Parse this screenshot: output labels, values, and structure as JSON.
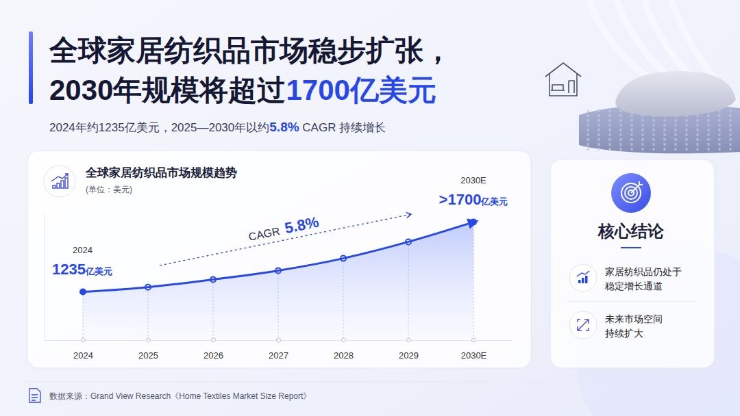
{
  "header": {
    "title": [
      "全球家居纺织品市场稳步扩张，",
      "2030年规模将超过1700亿美元"
    ],
    "subtitle": "2024年约1235亿美元，2025—2030年以约5.8% CAGR 持续增长"
  },
  "chart_data": {
    "type": "line",
    "title": "全球家居纺织品市场规模趋势",
    "subtitle": "(单位：美元)",
    "categories": [
      "2024",
      "2025",
      "2026",
      "2027",
      "2028",
      "2029",
      "2030E"
    ],
    "values": [
      1235,
      1268,
      1321,
      1383,
      1468,
      1583,
      1720
    ],
    "value_labels": [
      "1235亿美元",
      null,
      null,
      null,
      null,
      null,
      ">1700亿美元"
    ],
    "data_labels": true,
    "color": "#2747e8",
    "marker": "circle",
    "grid": false,
    "ylim": [
      900,
      1780
    ],
    "tick_labels": "x",
    "annotations": [
      "CAGR",
      "5.8%"
    ]
  },
  "conclusion": {
    "title": "核心结论",
    "items": [
      [
        "家居纺织品仍处于",
        "稳定增长通道"
      ],
      [
        "未来市场空间",
        "持续扩大"
      ]
    ]
  },
  "source": "数据来源：Grand View Research《Home Textiles Market Size Report》"
}
